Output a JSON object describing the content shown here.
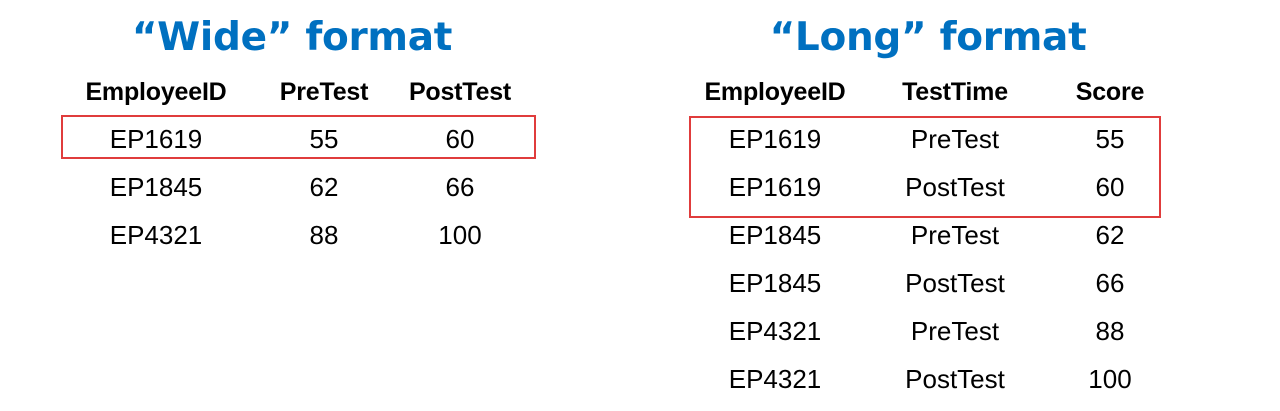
{
  "wide": {
    "title": "“Wide” format",
    "headers": [
      "EmployeeID",
      "PreTest",
      "PostTest"
    ],
    "rows": [
      [
        "EP1619",
        "55",
        "60"
      ],
      [
        "EP1845",
        "62",
        "66"
      ],
      [
        "EP4321",
        "88",
        "100"
      ]
    ]
  },
  "long": {
    "title": "“Long” format",
    "headers": [
      "EmployeeID",
      "TestTime",
      "Score"
    ],
    "rows": [
      [
        "EP1619",
        "PreTest",
        "55"
      ],
      [
        "EP1619",
        "PostTest",
        "60"
      ],
      [
        "EP1845",
        "PreTest",
        "62"
      ],
      [
        "EP1845",
        "PostTest",
        "66"
      ],
      [
        "EP4321",
        "PreTest",
        "88"
      ],
      [
        "EP4321",
        "PostTest",
        "100"
      ]
    ]
  },
  "colors": {
    "title": "#0070c0",
    "highlight": "#e03c3c"
  }
}
